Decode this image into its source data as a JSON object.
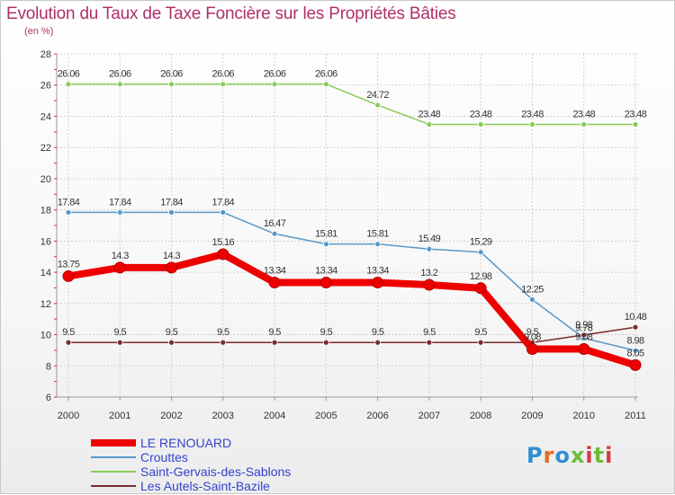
{
  "chart_data": {
    "type": "line",
    "title": "Evolution du Taux de Taxe Foncière sur les Propriétés Bâties",
    "ylabel": "(en %)",
    "xlabel": "",
    "ylim": [
      6,
      28
    ],
    "yticks": [
      6,
      8,
      10,
      12,
      14,
      16,
      18,
      20,
      22,
      24,
      26,
      28
    ],
    "categories": [
      "2000",
      "2001",
      "2002",
      "2003",
      "2004",
      "2005",
      "2006",
      "2007",
      "2008",
      "2009",
      "2010",
      "2011"
    ],
    "series": [
      {
        "name": "Saint-Gervais-des-Sablons",
        "color": "#88cc55",
        "values": [
          26.06,
          26.06,
          26.06,
          26.06,
          26.06,
          26.06,
          24.72,
          23.48,
          23.48,
          23.48,
          23.48,
          23.48
        ],
        "labels": [
          "26.06",
          "26.06",
          "26.06",
          "26.06",
          "26.06",
          "26.06",
          "24.72",
          "23.48",
          "23.48",
          "23.48",
          "23.48",
          "23.48"
        ]
      },
      {
        "name": "Crouttes",
        "color": "#5599cc",
        "values": [
          17.84,
          17.84,
          17.84,
          17.84,
          16.47,
          15.81,
          15.81,
          15.49,
          15.29,
          12.25,
          9.78,
          8.98
        ],
        "labels": [
          "17.84",
          "17.84",
          "17.84",
          "17.84",
          "16.47",
          "15.81",
          "15.81",
          "15.49",
          "15.29",
          "12.25",
          "9.78",
          "8.98"
        ]
      },
      {
        "name": "Les Autels-Saint-Bazile",
        "color": "#7a2a2a",
        "values": [
          9.5,
          9.5,
          9.5,
          9.5,
          9.5,
          9.5,
          9.5,
          9.5,
          9.5,
          9.5,
          9.98,
          10.48
        ],
        "labels": [
          "9.5",
          "9.5",
          "9.5",
          "9.5",
          "9.5",
          "9.5",
          "9.5",
          "9.5",
          "9.5",
          "9.5",
          "9.98",
          "10.48"
        ]
      },
      {
        "name": "LE RENOUARD",
        "color": "#ee0000",
        "values": [
          13.75,
          14.3,
          14.3,
          15.16,
          13.34,
          13.34,
          13.34,
          13.2,
          12.98,
          9.08,
          9.08,
          8.05
        ],
        "labels": [
          "13.75",
          "14.3",
          "14.3",
          "15.16",
          "13.34",
          "13.34",
          "13.34",
          "13.2",
          "12.98",
          "9.08",
          "9.08",
          "8.05"
        ]
      }
    ],
    "legend": [
      "LE RENOUARD",
      "Crouttes",
      "Saint-Gervais-des-Sablons",
      "Les Autels-Saint-Bazile"
    ],
    "legend_position": "bottom-left",
    "grid": true
  },
  "logo": {
    "text": "Proxiti"
  }
}
